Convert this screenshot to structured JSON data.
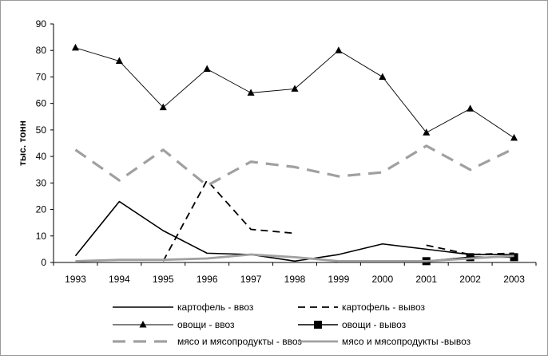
{
  "chart_data": {
    "type": "line",
    "title": "",
    "xlabel": "",
    "ylabel": "тыс. тонн",
    "ylim": [
      0,
      90
    ],
    "yticks": [
      0,
      10,
      20,
      30,
      40,
      50,
      60,
      70,
      80,
      90
    ],
    "categories": [
      "1993",
      "1994",
      "1995",
      "1996",
      "1997",
      "1998",
      "1999",
      "2000",
      "2001",
      "2002",
      "2003"
    ],
    "grid": false,
    "legend_position": "bottom",
    "series": [
      {
        "name": "картофель - ввоз",
        "style": "solid",
        "color": "#000000",
        "marker": "none",
        "values": [
          2.5,
          23,
          12,
          3.5,
          3,
          0.5,
          3,
          7,
          5,
          3,
          3
        ]
      },
      {
        "name": "картофель - вывоз",
        "style": "dashed",
        "color": "#000000",
        "marker": "none",
        "values": [
          null,
          null,
          0.5,
          31,
          12.5,
          11,
          null,
          null,
          6.5,
          3,
          3.5
        ]
      },
      {
        "name": "овощи - ввоз",
        "style": "thin",
        "color": "#000000",
        "marker": "triangle",
        "values": [
          81,
          76,
          58.5,
          73,
          64,
          65.5,
          80,
          70,
          49,
          58,
          47
        ]
      },
      {
        "name": "овощи - вывоз",
        "style": "solid",
        "color": "#000000",
        "marker": "square",
        "values": [
          null,
          null,
          null,
          null,
          null,
          null,
          null,
          null,
          0.5,
          2,
          2
        ]
      },
      {
        "name": "мясо и мясопродукты - ввоз",
        "style": "dashed-thick",
        "color": "#a0a0a0",
        "marker": "none",
        "values": [
          42.5,
          31,
          42.5,
          29,
          38,
          36,
          32.5,
          34,
          44,
          35,
          43
        ]
      },
      {
        "name": "мясо и мясопродукты -вывоз",
        "style": "solid-thick",
        "color": "#a0a0a0",
        "marker": "none",
        "values": [
          0.5,
          1,
          1,
          1.5,
          3,
          2,
          0.5,
          0.5,
          0.5,
          1.5,
          2.5
        ]
      }
    ]
  }
}
